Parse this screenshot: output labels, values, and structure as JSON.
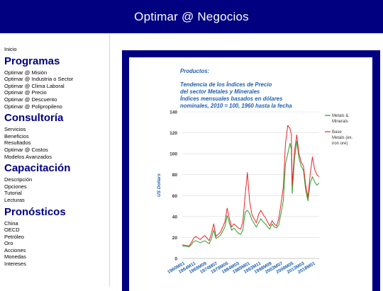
{
  "header": {
    "title": "Optimar @ Negocios"
  },
  "sidebar": {
    "home": "Inicio",
    "sections": [
      {
        "title": "Programas",
        "items": [
          "Optimar @ Misión",
          "Optimar @ Industria o Sector",
          "Optimar @ Clima Laboral",
          "Optimar @ Precio",
          "Optimar @ Descuento",
          "Optimar @ Polipropileno"
        ]
      },
      {
        "title": "Consultoría",
        "items": [
          "Servicios",
          "Beneficios",
          "Resultados",
          "Optimar @ Costos",
          "Modelos Avanzados"
        ]
      },
      {
        "title": "Capacitación",
        "items": [
          "Descripción",
          "Opciones",
          "Tutorial",
          "Lecturas"
        ]
      },
      {
        "title": "Pronósticos",
        "items": [
          "China",
          "OECD",
          "Petróleo",
          "Oro",
          "Acciones",
          "Monedas",
          "Intereses"
        ]
      }
    ]
  },
  "colors": {
    "header_bg": "#000080",
    "frame_bg": "#000080",
    "title_blue": "#1f5fb0",
    "series_metals": "#2ca02c",
    "series_base_metals": "#e8262a"
  },
  "chart_data": {
    "type": "line",
    "title_lines": [
      "Productos:",
      "Tendencia de los Índices de Precio",
      "del sector Metales y Minerales",
      "Índices mensuales basados en dólares",
      "nominales, 2010 = 100, 1960 hasta la fecha"
    ],
    "ylabel": "US Dollars",
    "ylim": [
      0,
      140
    ],
    "yticks": [
      0,
      20,
      40,
      60,
      80,
      100,
      120,
      140
    ],
    "xlim": [
      1960,
      2021
    ],
    "x_tick_labels": [
      "1960M01",
      "1964M11",
      "1969M09",
      "1974M07",
      "1979M05",
      "1984M03",
      "1989M01",
      "1993M11",
      "1998M09",
      "2003M07",
      "2008M05",
      "2013M03",
      "2018M01"
    ],
    "legend_position": "right",
    "series": [
      {
        "name": "Metals & Minerals",
        "x": [
          1960,
          1963,
          1964,
          1965,
          1966,
          1968,
          1970,
          1972,
          1973,
          1974,
          1975,
          1977,
          1979,
          1980,
          1981,
          1982,
          1983,
          1985,
          1986,
          1987,
          1988,
          1989,
          1990,
          1991,
          1993,
          1994,
          1995,
          1996,
          1997,
          1998,
          1999,
          2000,
          2001,
          2002,
          2003,
          2004,
          2005,
          2006,
          2007,
          2008,
          2008.6,
          2009,
          2010,
          2011,
          2012,
          2013,
          2014,
          2015,
          2016,
          2017,
          2018,
          2019,
          2020,
          2021
        ],
        "values": [
          12,
          11,
          13,
          16,
          17,
          15,
          17,
          14,
          19,
          27,
          19,
          22,
          30,
          41,
          34,
          27,
          29,
          24,
          23,
          27,
          44,
          46,
          43,
          37,
          30,
          34,
          38,
          35,
          33,
          30,
          28,
          33,
          30,
          29,
          32,
          43,
          55,
          90,
          100,
          110,
          104,
          62,
          95,
          112,
          96,
          88,
          84,
          65,
          55,
          72,
          78,
          73,
          70,
          72
        ]
      },
      {
        "name": "Base Metals (ex. iron ore)",
        "x": [
          1960,
          1963,
          1964,
          1965,
          1966,
          1968,
          1970,
          1972,
          1973,
          1974,
          1975,
          1977,
          1979,
          1980,
          1981,
          1982,
          1983,
          1985,
          1986,
          1987,
          1988,
          1989,
          1990,
          1991,
          1993,
          1994,
          1995,
          1996,
          1997,
          1998,
          1999,
          2000,
          2001,
          2002,
          2003,
          2004,
          2005,
          2006,
          2007,
          2008,
          2008.6,
          2009,
          2010,
          2011,
          2012,
          2013,
          2014,
          2015,
          2016,
          2017,
          2018,
          2019,
          2020,
          2021
        ],
        "values": [
          13,
          12,
          15,
          19,
          21,
          18,
          22,
          17,
          24,
          33,
          21,
          25,
          35,
          48,
          38,
          30,
          33,
          29,
          28,
          35,
          60,
          82,
          55,
          42,
          34,
          42,
          46,
          42,
          39,
          35,
          31,
          36,
          33,
          31,
          38,
          52,
          68,
          110,
          127,
          124,
          118,
          70,
          102,
          118,
          100,
          92,
          88,
          70,
          58,
          80,
          97,
          85,
          80,
          78
        ]
      }
    ]
  }
}
